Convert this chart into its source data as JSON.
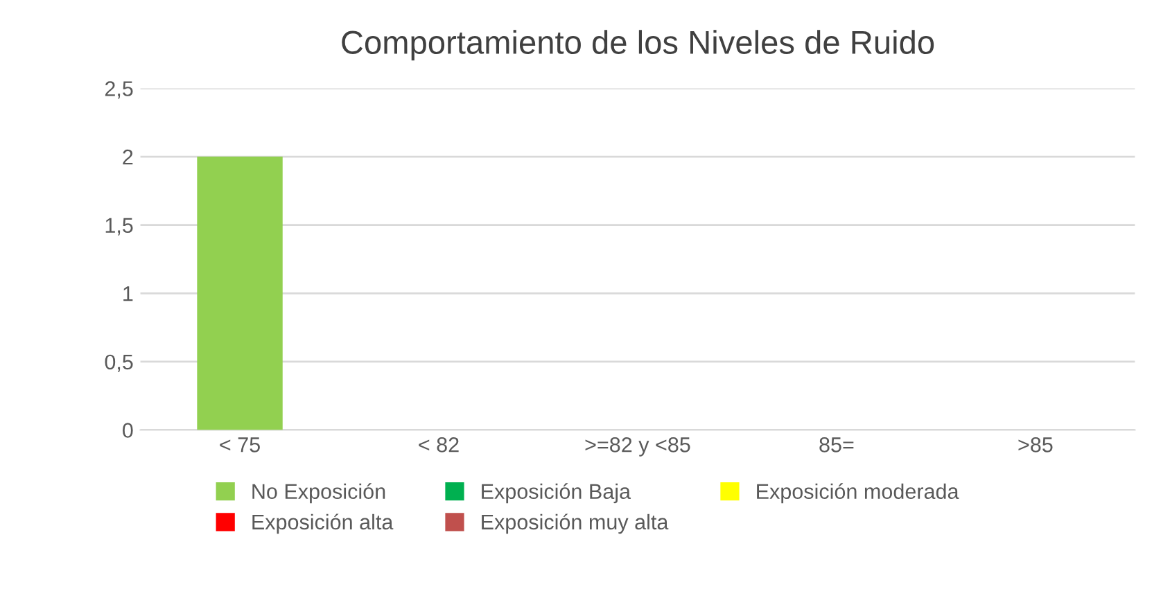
{
  "chart_data": {
    "type": "bar",
    "title": "Comportamiento de los Niveles de Ruido",
    "categories": [
      "< 75",
      "< 82",
      ">=82 y <85",
      "85=",
      ">85"
    ],
    "stacked": true,
    "series": [
      {
        "name": "No Exposición",
        "color": "#92d050",
        "values": [
          2,
          null,
          null,
          null,
          null
        ]
      },
      {
        "name": "Exposición Baja",
        "color": "#00b050",
        "values": [
          null,
          null,
          null,
          null,
          null
        ]
      },
      {
        "name": "Exposición moderada",
        "color": "#ffff00",
        "values": [
          null,
          null,
          null,
          null,
          null
        ]
      },
      {
        "name": "Exposición alta",
        "color": "#ff0000",
        "values": [
          null,
          null,
          null,
          null,
          null
        ]
      },
      {
        "name": "Exposición muy alta",
        "color": "#c0504d",
        "values": [
          null,
          null,
          null,
          null,
          null
        ]
      }
    ],
    "ylim": [
      0,
      2.5
    ],
    "yticks": [
      {
        "value": 0,
        "label": "0"
      },
      {
        "value": 0.5,
        "label": "0,5"
      },
      {
        "value": 1,
        "label": "1"
      },
      {
        "value": 1.5,
        "label": "1,5"
      },
      {
        "value": 2,
        "label": "2"
      },
      {
        "value": 2.5,
        "label": "2,5"
      }
    ],
    "grid": "y",
    "legend": "bottom"
  }
}
